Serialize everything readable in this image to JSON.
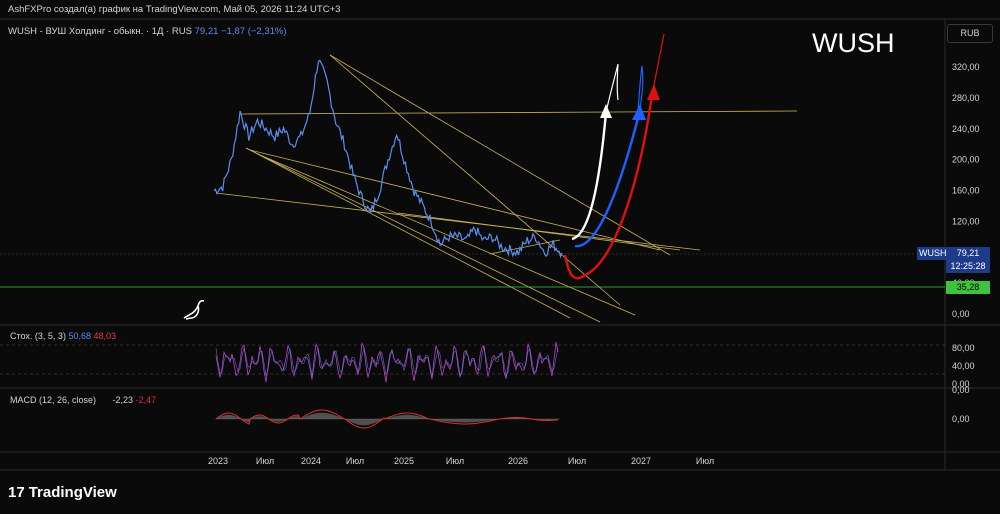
{
  "header": {
    "text": "AshFXPro создал(а) график на TradingView.com, Май 05, 2026 11:24 UTC+3"
  },
  "symbol_bar": {
    "title": "WUSH - ВУШ Холдинг - обыкн. · 1Д · RUS",
    "price": "79,21",
    "change": "−1,87 (−2,31%)"
  },
  "watermark": "WUSH",
  "currency_button": "RUB",
  "price_label": {
    "symbol": "WUSH",
    "price": "79,21",
    "countdown": "12:25:28"
  },
  "support_label": "35,28",
  "footer": {
    "brand": "TradingView",
    "brand_mark": "17"
  },
  "colors": {
    "background": "#0a0a0a",
    "price_line": "#5b8def",
    "trendline": "#c9b458",
    "support": "#3cc43c",
    "projection_white": "#ffffff",
    "projection_blue": "#1f5fff",
    "projection_red": "#e01010",
    "stoch": "#c040c0",
    "macd": "#e03030"
  },
  "chart_data": [
    {
      "type": "line",
      "title": "WUSH - ВУШ Холдинг - обыкн. · 1Д · RUS",
      "y_ticks": [
        "0,00",
        "40,00",
        "80,00",
        "120,00",
        "160,00",
        "200,00",
        "240,00",
        "280,00",
        "320,00"
      ],
      "x_ticks": [
        "2023",
        "Июл",
        "2024",
        "Июл",
        "2025",
        "Июл",
        "2026",
        "Июл",
        "2027",
        "Июл"
      ],
      "ylim": [
        0,
        360
      ],
      "series": [
        {
          "x": [
            "2023-01",
            "2023-02",
            "2023-03",
            "2023-04",
            "2023-05",
            "2023-06",
            "2023-07",
            "2023-08",
            "2023-09",
            "2023-10",
            "2023-11",
            "2023-12",
            "2024-01",
            "2024-02",
            "2024-03",
            "2024-04",
            "2024-05",
            "2024-06",
            "2024-07",
            "2024-08",
            "2024-09",
            "2024-10",
            "2024-11",
            "2024-12",
            "2025-01",
            "2025-02",
            "2025-03",
            "2025-04",
            "2025-05",
            "2025-06",
            "2025-07",
            "2025-08",
            "2025-09",
            "2025-10",
            "2025-11",
            "2025-12",
            "2026-01",
            "2026-02",
            "2026-03",
            "2026-04",
            "2026-05"
          ],
          "values": [
            160,
            165,
            200,
            262,
            230,
            250,
            240,
            230,
            240,
            220,
            230,
            260,
            330,
            300,
            250,
            220,
            180,
            150,
            130,
            160,
            200,
            235,
            195,
            160,
            140,
            120,
            90,
            100,
            100,
            95,
            110,
            95,
            100,
            88,
            83,
            80,
            95,
            100,
            80,
            90,
            79.21
          ]
        }
      ],
      "last_value": 79.21,
      "support_level": 35.28,
      "resistance_level": 265
    },
    {
      "type": "line",
      "title": "Стох. (3, 5, 3)",
      "values_shown": [
        "50,68",
        "48,03"
      ],
      "y_ticks": [
        "80,00",
        "40,00",
        "0,00"
      ]
    },
    {
      "type": "line",
      "title": "MACD (12, 26, close)",
      "values_shown": [
        "-2,23",
        "-2,47"
      ],
      "y_ticks": [
        "0,00",
        "0,00"
      ]
    }
  ]
}
